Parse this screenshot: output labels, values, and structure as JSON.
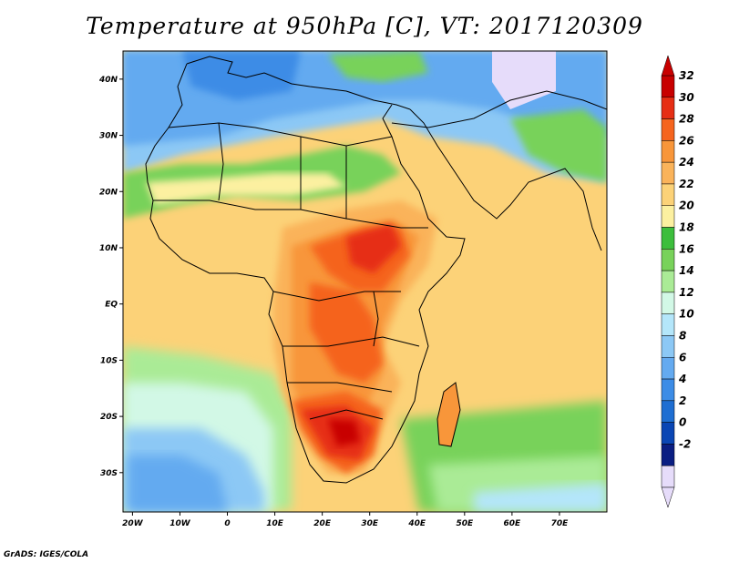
{
  "title": "Temperature at 950hPa [C], VT: 2017120309",
  "credit": "GrADS: IGES/COLA",
  "map": {
    "lon_range": [
      -22,
      80
    ],
    "lat_range": [
      -37,
      45
    ],
    "lon_ticks": [
      "20W",
      "10W",
      "0",
      "10E",
      "20E",
      "30E",
      "40E",
      "50E",
      "60E",
      "70E"
    ],
    "lat_ticks": [
      "40N",
      "30N",
      "20N",
      "10N",
      "EQ",
      "10S",
      "20S",
      "30S"
    ]
  },
  "colorbar": {
    "labels": [
      "32",
      "30",
      "28",
      "26",
      "24",
      "22",
      "20",
      "18",
      "16",
      "14",
      "12",
      "10",
      "8",
      "6",
      "4",
      "2",
      "0",
      "-2"
    ],
    "colors": [
      "#c80000",
      "#e62e14",
      "#f5641e",
      "#f8963a",
      "#fab35a",
      "#fcd278",
      "#fcf0a0",
      "#3cbe3c",
      "#78d25a",
      "#aaeb96",
      "#d2f8e6",
      "#b4e6fa",
      "#8cc8f5",
      "#64aaf0",
      "#3c8ce6",
      "#1e6ed2",
      "#0a46b4",
      "#0a1e82",
      "#e6dcfa"
    ]
  }
}
